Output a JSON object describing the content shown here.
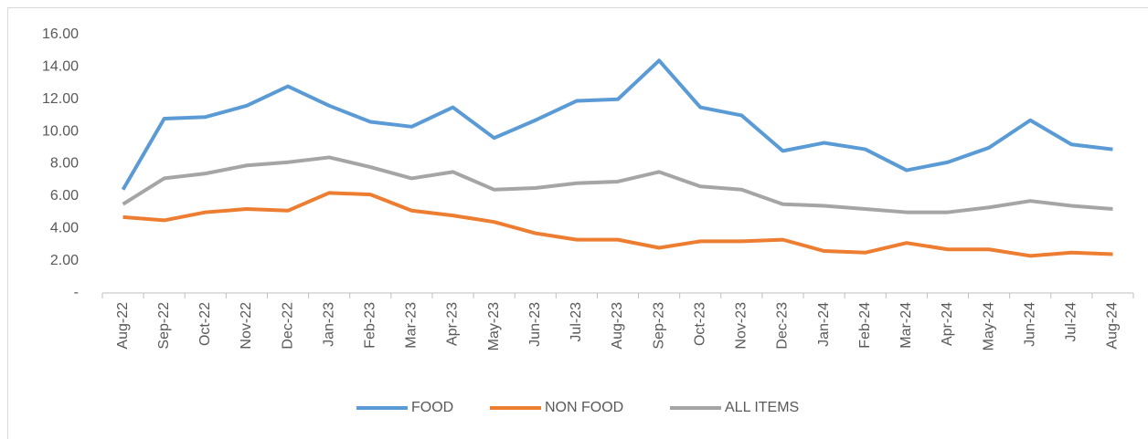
{
  "chart_data": {
    "type": "line",
    "categories": [
      "Aug-22",
      "Sep-22",
      "Oct-22",
      "Nov-22",
      "Dec-22",
      "Jan-23",
      "Feb-23",
      "Mar-23",
      "Apr-23",
      "May-23",
      "Jun-23",
      "Jul-23",
      "Aug-23",
      "Sep-23",
      "Oct-23",
      "Nov-23",
      "Dec-23",
      "Jan-24",
      "Feb-24",
      "Mar-24",
      "Apr-24",
      "May-24",
      "Jun-24",
      "Jul-24",
      "Aug-24"
    ],
    "series": [
      {
        "name": "FOOD",
        "color": "#5b9bd5",
        "values": [
          6.4,
          10.8,
          10.9,
          11.6,
          12.8,
          11.6,
          10.6,
          10.3,
          11.5,
          9.6,
          10.7,
          11.9,
          12.0,
          14.4,
          11.5,
          11.0,
          8.8,
          9.3,
          8.9,
          7.6,
          8.1,
          9.0,
          10.7,
          9.2,
          8.9
        ]
      },
      {
        "name": "NON FOOD",
        "color": "#ed7d31",
        "values": [
          4.7,
          4.5,
          5.0,
          5.2,
          5.1,
          6.2,
          6.1,
          5.1,
          4.8,
          4.4,
          3.7,
          3.3,
          3.3,
          2.8,
          3.2,
          3.2,
          3.3,
          2.6,
          2.5,
          3.1,
          2.7,
          2.7,
          2.3,
          2.5,
          2.4
        ]
      },
      {
        "name": "ALL ITEMS",
        "color": "#a5a5a5",
        "values": [
          5.5,
          7.1,
          7.4,
          7.9,
          8.1,
          8.4,
          7.8,
          7.1,
          7.5,
          6.4,
          6.5,
          6.8,
          6.9,
          7.5,
          6.6,
          6.4,
          5.5,
          5.4,
          5.2,
          5.0,
          5.0,
          5.3,
          5.7,
          5.4,
          5.2
        ]
      }
    ],
    "ylim": [
      0,
      16
    ],
    "yticks": [
      {
        "value": 0,
        "label": "-"
      },
      {
        "value": 2,
        "label": "2.00"
      },
      {
        "value": 4,
        "label": "4.00"
      },
      {
        "value": 6,
        "label": "6.00"
      },
      {
        "value": 8,
        "label": "8.00"
      },
      {
        "value": 10,
        "label": "10.00"
      },
      {
        "value": 12,
        "label": "12.00"
      },
      {
        "value": 14,
        "label": "14.00"
      },
      {
        "value": 16,
        "label": "16.00"
      }
    ],
    "grid": false,
    "legend": "bottom"
  }
}
